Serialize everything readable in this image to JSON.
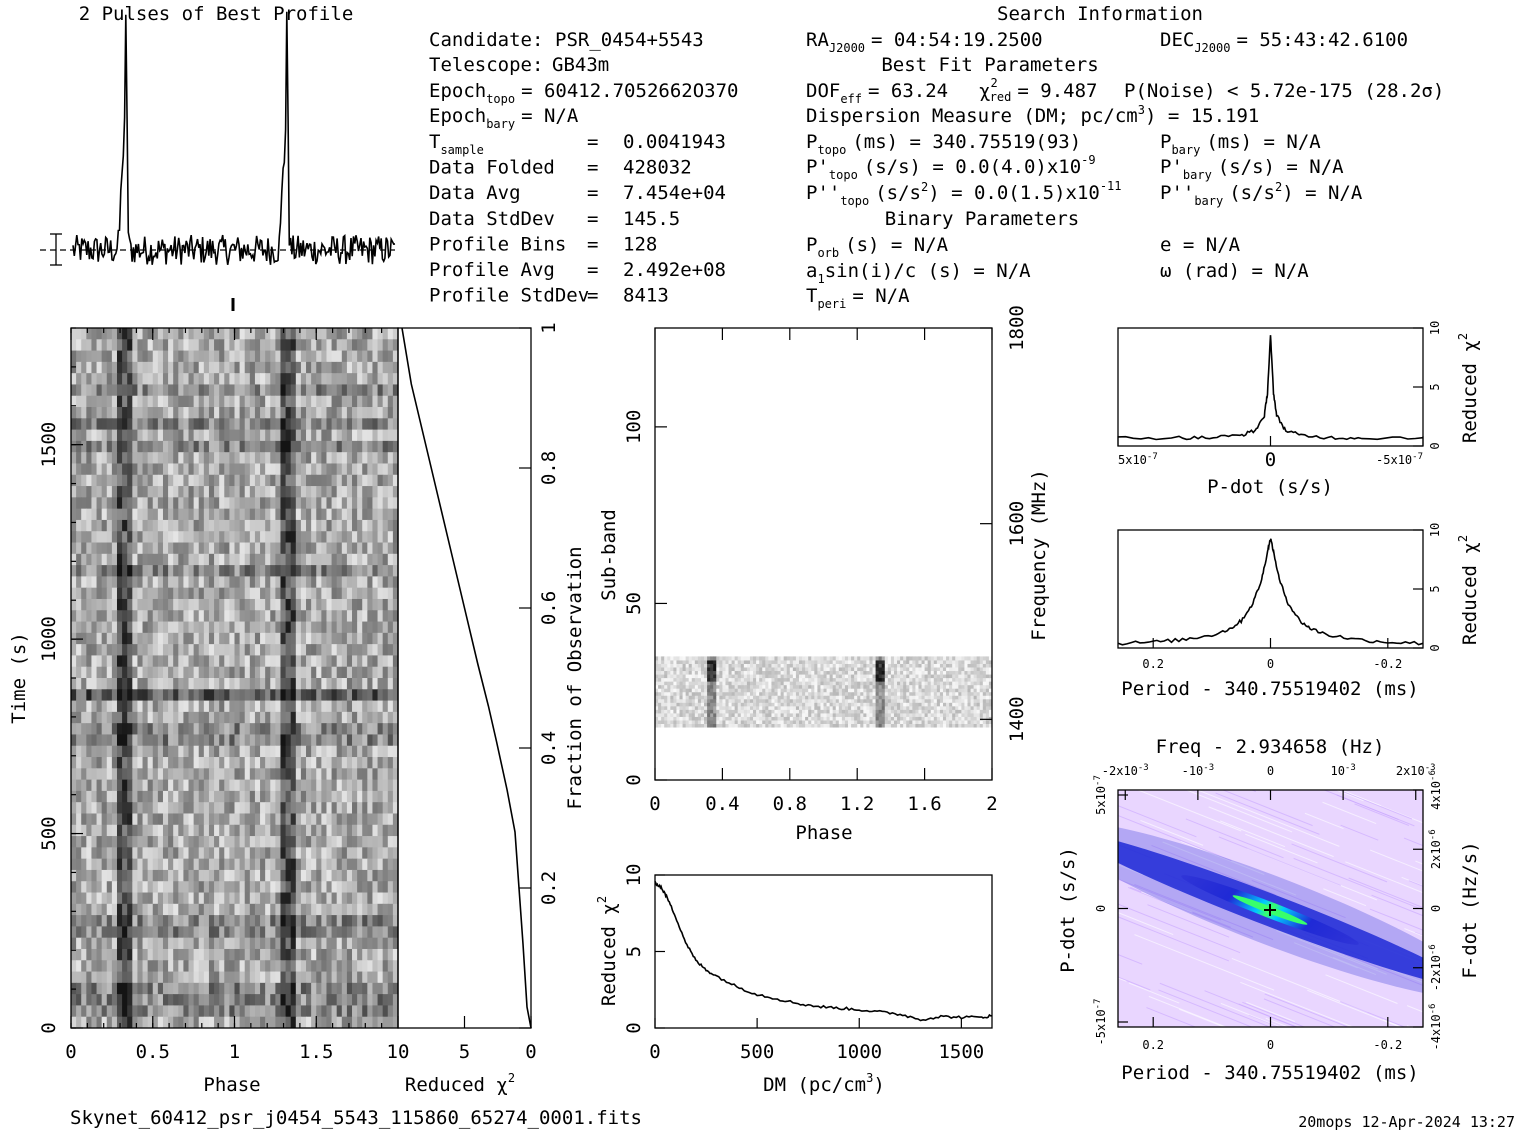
{
  "footer": {
    "filename": "Skynet_60412_psr_j0454_5543_115860_65274_0001.fits",
    "stamp": "20mops 12-Apr-2024 13:27"
  },
  "profile": {
    "title": "2 Pulses of Best Profile",
    "pulse_phases": [
      0.33,
      1.33
    ]
  },
  "search_info": {
    "title": "Search Information",
    "candidate_label": "Candidate:",
    "candidate": "PSR_0454+5543",
    "telescope_label": "Telescope:",
    "telescope": "GB43m",
    "epoch_topo_label": "Epoch",
    "epoch_topo_sub": "topo",
    "epoch_topo": "= 60412.7052662O370",
    "epoch_bary_label": "Epoch",
    "epoch_bary_sub": "bary",
    "epoch_bary": "= N/A",
    "rows": [
      {
        "label": "T",
        "sub": "sample",
        "value": "0.0041943"
      },
      {
        "label": "Data Folded",
        "sub": "",
        "value": "428032"
      },
      {
        "label": "Data Avg",
        "sub": "",
        "value": "7.454e+04"
      },
      {
        "label": "Data StdDev",
        "sub": "",
        "value": "145.5"
      },
      {
        "label": "Profile Bins",
        "sub": "",
        "value": "128"
      },
      {
        "label": "Profile Avg",
        "sub": "",
        "value": "2.492e+08"
      },
      {
        "label": "Profile StdDev",
        "sub": "",
        "value": "8413"
      }
    ],
    "ra_label": "RA",
    "ra_sub": "J2000",
    "ra": "= 04:54:19.2500",
    "dec_label": "DEC",
    "dec_sub": "J2000",
    "dec": "= 55:43:42.6100",
    "best_fit_title": "Best Fit Parameters",
    "dof_label": "DOF",
    "dof_sub": "eff",
    "dof": "= 63.24",
    "chi_label": "χ",
    "chi_sup": "2",
    "chi_sub": "red",
    "chi": "= 9.487",
    "pnoise": "P(Noise) < 5.72e-175  (28.2σ)",
    "dm_line": "Dispersion Measure (DM; pc/cm",
    "dm_sup": "3",
    "dm_value": ") = 15.191",
    "ptopo_label": "P",
    "ptopo_sub": "topo",
    "ptopo": "(ms) =  340.75519(93)",
    "pbary_label": "P",
    "pbary_sub": "bary",
    "pbary": "(ms) = N/A",
    "pdtopo_label": "P'",
    "pdtopo_sub": "topo",
    "pdtopo": "(s/s) = 0.0(4.0)x10",
    "pdtopo_exp": "-9",
    "pdbary_label": "P'",
    "pdbary_sub": "bary",
    "pdbary": "(s/s) = N/A",
    "pddtopo_label": "P''",
    "pddtopo_sub": "topo",
    "pddtopo": "(s/s",
    "pddtopo_sup": "2",
    "pddtopo_mid": ") = 0.0(1.5)x10",
    "pddtopo_exp": "-11",
    "pddbary_label": "P''",
    "pddbary_sub": "bary",
    "pddbary": "(s/s",
    "pddbary_sup": "2",
    "pddbary_end": ") = N/A",
    "binary_title": "Binary Parameters",
    "porb_label": "P",
    "porb_sub": "orb",
    "porb": "(s) = N/A",
    "ecc": "e = N/A",
    "a1_label": "a",
    "a1_sub": "1",
    "a1": "sin(i)/c (s) = N/A",
    "omega": "ω (rad) = N/A",
    "tperi_label": "T",
    "tperi_sub": "peri",
    "tperi": "= N/A"
  },
  "chart_data": [
    {
      "type": "heatmap",
      "name": "time-phase",
      "xlabel": "Phase",
      "ylabel": "Time (s)",
      "xlim": [
        0,
        2
      ],
      "ylim": [
        0,
        1800
      ],
      "xticks": [
        "0",
        "0.5",
        "1",
        "1.5"
      ],
      "yticks": [
        "0",
        "500",
        "1000",
        "1500"
      ],
      "pulse_phases": [
        0.33,
        1.33
      ],
      "bright_time_s": 850
    },
    {
      "type": "line",
      "name": "cumulative-chi2",
      "xlabel": "Reduced χ2",
      "ylabel": "Fraction of Observation",
      "xlim": [
        10,
        0
      ],
      "ylim": [
        0,
        1
      ],
      "xticks": [
        "10",
        "5",
        "0"
      ],
      "yticks": [
        "0.2",
        "0.4",
        "0.6",
        "0.8",
        "1"
      ],
      "x": [
        0.0,
        0.3,
        0.6,
        1.2,
        1.8,
        2.6,
        3.2,
        4.0,
        5.0,
        6.0,
        7.0,
        8.0,
        9.0,
        9.7
      ],
      "y": [
        0.0,
        0.03,
        0.12,
        0.28,
        0.34,
        0.41,
        0.46,
        0.52,
        0.6,
        0.68,
        0.76,
        0.84,
        0.92,
        1.0
      ]
    },
    {
      "type": "heatmap",
      "name": "subband-phase",
      "xlabel": "Phase",
      "ylabel": "Sub-band",
      "y2label": "Frequency (MHz)",
      "xlim": [
        0,
        2
      ],
      "ylim": [
        0,
        128
      ],
      "xticks": [
        "0",
        "0.4",
        "0.8",
        "1.2",
        "1.6",
        "2"
      ],
      "yticks": [
        "0",
        "50",
        "100"
      ],
      "y2ticks": [
        "1400",
        "1600",
        "1800"
      ],
      "data_subband_range": [
        15,
        35
      ],
      "pulse_phases": [
        0.33,
        1.33
      ]
    },
    {
      "type": "line",
      "name": "dm-chi2",
      "xlabel": "DM (pc/cm3)",
      "ylabel": "Reduced χ2",
      "xlim": [
        0,
        1650
      ],
      "ylim": [
        0,
        10
      ],
      "xticks": [
        "0",
        "500",
        "1000",
        "1500"
      ],
      "yticks": [
        "0",
        "5",
        "10"
      ],
      "x": [
        0,
        30,
        60,
        100,
        150,
        200,
        250,
        300,
        400,
        500,
        600,
        700,
        800,
        900,
        1000,
        1100,
        1200,
        1300,
        1400,
        1500,
        1600,
        1650
      ],
      "y": [
        9.5,
        9.2,
        8.5,
        7.3,
        5.6,
        4.4,
        3.8,
        3.4,
        2.7,
        2.2,
        1.9,
        1.6,
        1.4,
        1.3,
        1.2,
        1.05,
        0.9,
        0.55,
        0.75,
        0.7,
        0.7,
        0.8
      ]
    },
    {
      "type": "line",
      "name": "pdot-chi2",
      "xlabel": "P-dot (s/s)",
      "ylabel": "Reduced χ2",
      "xlim": [
        5e-07,
        -5e-07
      ],
      "ylim": [
        0,
        10
      ],
      "xticks": [
        "5x10",
        "0",
        "-5x10"
      ],
      "xtick_exp": "-7",
      "yticks": [
        "0",
        "5",
        "10"
      ],
      "x": [
        5e-07,
        3e-07,
        2e-07,
        1e-07,
        5e-08,
        2e-08,
        1e-08,
        0,
        -1e-08,
        -2e-08,
        -5e-08,
        -1e-07,
        -2e-07,
        -3e-07,
        -5e-07
      ],
      "y": [
        0.7,
        0.7,
        0.7,
        0.9,
        1.3,
        2.6,
        4.5,
        9.3,
        4.5,
        2.6,
        1.3,
        0.9,
        0.7,
        0.7,
        0.7
      ]
    },
    {
      "type": "line",
      "name": "period-chi2",
      "xlabel": "Period - 340.75519402 (ms)",
      "ylabel": "Reduced χ2",
      "xlim": [
        0.26,
        -0.26
      ],
      "ylim": [
        0,
        10
      ],
      "xticks": [
        "0.2",
        "0",
        "-0.2"
      ],
      "yticks": [
        "0",
        "5",
        "10"
      ],
      "x": [
        0.26,
        0.2,
        0.15,
        0.1,
        0.07,
        0.05,
        0.03,
        0.015,
        0.005,
        0,
        -0.005,
        -0.015,
        -0.03,
        -0.05,
        -0.07,
        -0.1,
        -0.15,
        -0.2,
        -0.26
      ],
      "y": [
        0.4,
        0.5,
        0.7,
        1.1,
        1.6,
        2.3,
        3.8,
        5.8,
        8.2,
        9.3,
        8.2,
        5.8,
        3.8,
        2.3,
        1.6,
        1.1,
        0.7,
        0.5,
        0.4
      ]
    },
    {
      "type": "heatmap",
      "name": "period-pdot",
      "title": "Freq - 2.934658 (Hz)",
      "xlabel": "Period - 340.75519402 (ms)",
      "ylabel": "P-dot (s/s)",
      "y2label": "F-dot (Hz/s)",
      "xlim": [
        0.26,
        -0.26
      ],
      "ylim": [
        5e-07,
        -5e-07
      ],
      "xticks": [
        "0.2",
        "0",
        "-0.2"
      ],
      "topticks": [
        "-2x10",
        "-10",
        "0",
        "10",
        "2x10"
      ],
      "toptick_exp": "-3",
      "yticks": [
        "5x10",
        "0",
        "-5x10"
      ],
      "ytick_exp": "-7",
      "y2ticks": [
        "-4x10",
        "-2x10",
        "0",
        "2x10",
        "4x10"
      ],
      "y2tick_exp": "-6",
      "peak": [
        0,
        0
      ]
    }
  ]
}
